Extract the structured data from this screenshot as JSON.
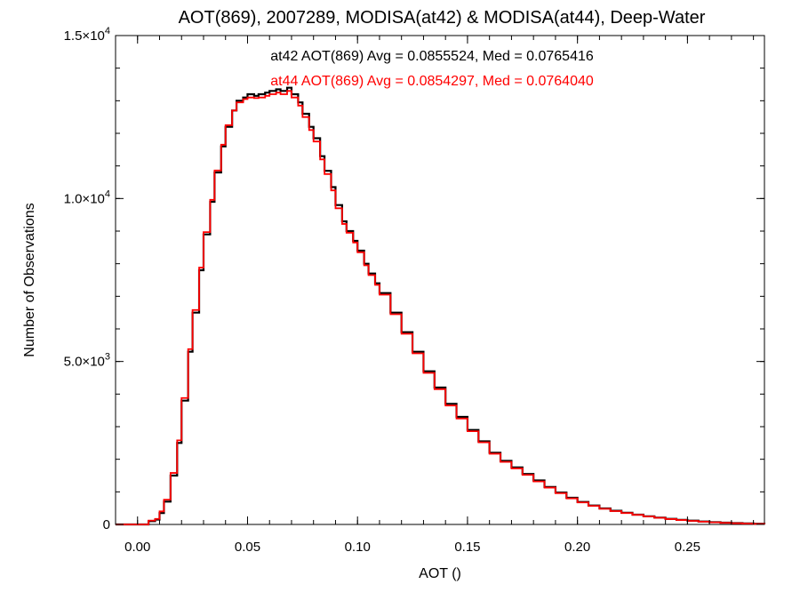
{
  "chart_data": {
    "type": "line",
    "title": "AOT(869), 2007289, MODISA(at42) & MODISA(at44), Deep-Water",
    "xlabel": "AOT ()",
    "ylabel": "Number of Observations",
    "xlim": [
      -0.01,
      0.285
    ],
    "ylim": [
      0,
      15000
    ],
    "x_ticks": [
      {
        "value": 0.0,
        "label": "0.00"
      },
      {
        "value": 0.05,
        "label": "0.05"
      },
      {
        "value": 0.1,
        "label": "0.10"
      },
      {
        "value": 0.15,
        "label": "0.15"
      },
      {
        "value": 0.2,
        "label": "0.20"
      },
      {
        "value": 0.25,
        "label": "0.25"
      }
    ],
    "y_ticks": [
      {
        "value": 0,
        "mantissa": "0",
        "exponent": ""
      },
      {
        "value": 5000,
        "mantissa": "5.0×10",
        "exponent": "3"
      },
      {
        "value": 10000,
        "mantissa": "1.0×10",
        "exponent": "4"
      },
      {
        "value": 15000,
        "mantissa": "1.5×10",
        "exponent": "4"
      }
    ],
    "annotations": [
      {
        "text": "at42 AOT(869) Avg = 0.0855524, Med = 0.0765416",
        "color": "#000000"
      },
      {
        "text": "at44 AOT(869) Avg = 0.0854297, Med = 0.0764040",
        "color": "#ff0000"
      }
    ],
    "grid": false,
    "series": [
      {
        "name": "at42",
        "color": "#000000",
        "x": [
          -0.01,
          0.0,
          0.005,
          0.008,
          0.01,
          0.012,
          0.015,
          0.018,
          0.02,
          0.023,
          0.025,
          0.028,
          0.03,
          0.033,
          0.035,
          0.038,
          0.04,
          0.043,
          0.045,
          0.048,
          0.05,
          0.053,
          0.055,
          0.058,
          0.06,
          0.063,
          0.065,
          0.068,
          0.07,
          0.073,
          0.075,
          0.078,
          0.08,
          0.083,
          0.085,
          0.088,
          0.09,
          0.093,
          0.095,
          0.098,
          0.1,
          0.103,
          0.105,
          0.108,
          0.11,
          0.115,
          0.12,
          0.125,
          0.13,
          0.135,
          0.14,
          0.145,
          0.15,
          0.155,
          0.16,
          0.165,
          0.17,
          0.175,
          0.18,
          0.185,
          0.19,
          0.195,
          0.2,
          0.205,
          0.21,
          0.215,
          0.22,
          0.225,
          0.23,
          0.235,
          0.24,
          0.245,
          0.25,
          0.255,
          0.26,
          0.265,
          0.27,
          0.275,
          0.28,
          0.285
        ],
        "values": [
          0,
          0,
          100,
          150,
          350,
          700,
          1500,
          2500,
          3800,
          5300,
          6500,
          7800,
          8900,
          9900,
          10800,
          11600,
          12200,
          12700,
          13000,
          13100,
          13200,
          13150,
          13200,
          13250,
          13300,
          13350,
          13300,
          13400,
          13200,
          12950,
          12600,
          12200,
          11850,
          11300,
          10850,
          10350,
          9800,
          9300,
          9000,
          8700,
          8400,
          8000,
          7700,
          7400,
          7100,
          6500,
          5900,
          5300,
          4700,
          4200,
          3700,
          3300,
          2900,
          2550,
          2200,
          1950,
          1750,
          1550,
          1350,
          1150,
          980,
          820,
          690,
          580,
          490,
          420,
          360,
          300,
          250,
          210,
          170,
          140,
          115,
          90,
          70,
          55,
          40,
          30,
          20,
          12
        ]
      },
      {
        "name": "at44",
        "color": "#ff0000",
        "x": [
          -0.01,
          0.0,
          0.005,
          0.008,
          0.01,
          0.012,
          0.015,
          0.018,
          0.02,
          0.023,
          0.025,
          0.028,
          0.03,
          0.033,
          0.035,
          0.038,
          0.04,
          0.043,
          0.045,
          0.048,
          0.05,
          0.053,
          0.055,
          0.058,
          0.06,
          0.063,
          0.065,
          0.068,
          0.07,
          0.073,
          0.075,
          0.078,
          0.08,
          0.083,
          0.085,
          0.088,
          0.09,
          0.093,
          0.095,
          0.098,
          0.1,
          0.103,
          0.105,
          0.108,
          0.11,
          0.115,
          0.12,
          0.125,
          0.13,
          0.135,
          0.14,
          0.145,
          0.15,
          0.155,
          0.16,
          0.165,
          0.17,
          0.175,
          0.18,
          0.185,
          0.19,
          0.195,
          0.2,
          0.205,
          0.21,
          0.215,
          0.22,
          0.225,
          0.23,
          0.235,
          0.24,
          0.245,
          0.25,
          0.255,
          0.26,
          0.265,
          0.27,
          0.275,
          0.28,
          0.285
        ],
        "values": [
          0,
          0,
          120,
          170,
          400,
          760,
          1580,
          2580,
          3880,
          5380,
          6580,
          7880,
          8970,
          9960,
          10860,
          11650,
          12250,
          12700,
          12950,
          13050,
          13100,
          13080,
          13100,
          13150,
          13200,
          13250,
          13200,
          13300,
          13100,
          12850,
          12500,
          12100,
          11750,
          11200,
          10750,
          10250,
          9700,
          9220,
          8950,
          8650,
          8350,
          7950,
          7650,
          7350,
          7050,
          6450,
          5850,
          5250,
          4650,
          4150,
          3650,
          3250,
          2860,
          2520,
          2170,
          1920,
          1720,
          1520,
          1320,
          1130,
          960,
          800,
          675,
          570,
          480,
          410,
          350,
          295,
          245,
          205,
          165,
          135,
          110,
          85,
          65,
          50,
          36,
          27,
          18,
          10
        ]
      }
    ]
  }
}
